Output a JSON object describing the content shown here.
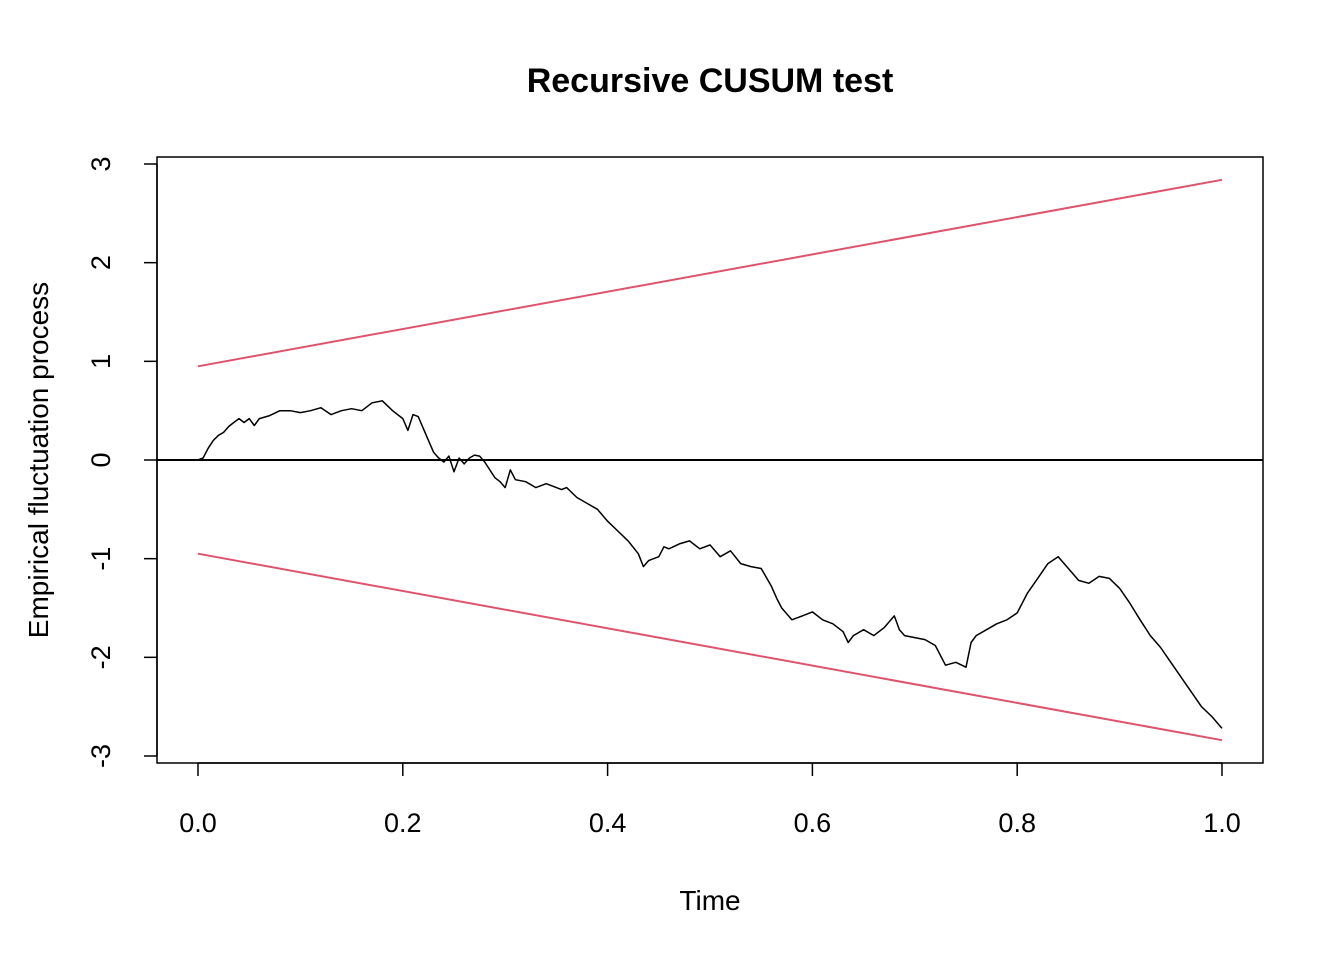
{
  "chart_data": {
    "type": "line",
    "title": "Recursive CUSUM test",
    "xlabel": "Time",
    "ylabel": "Empirical fluctuation process",
    "xlim": [
      0.0,
      1.0
    ],
    "ylim": [
      -3,
      3
    ],
    "x_ticks": [
      "0.0",
      "0.2",
      "0.4",
      "0.6",
      "0.8",
      "1.0"
    ],
    "y_ticks": [
      "-3",
      "-2",
      "-1",
      "0",
      "1",
      "2",
      "3"
    ],
    "grid": false,
    "reference_line": {
      "y": 0,
      "color": "#000000"
    },
    "boundaries": [
      {
        "points": [
          [
            0.0,
            0.95
          ],
          [
            1.0,
            2.84
          ]
        ],
        "color": "#DF536B"
      },
      {
        "points": [
          [
            0.0,
            -0.95
          ],
          [
            1.0,
            -2.84
          ]
        ],
        "color": "#DF536B"
      }
    ],
    "series": [
      {
        "color": "#000000",
        "points": [
          [
            0.0,
            0.0
          ],
          [
            0.005,
            0.02
          ],
          [
            0.01,
            0.12
          ],
          [
            0.015,
            0.2
          ],
          [
            0.02,
            0.25
          ],
          [
            0.025,
            0.28
          ],
          [
            0.03,
            0.34
          ],
          [
            0.035,
            0.38
          ],
          [
            0.04,
            0.42
          ],
          [
            0.045,
            0.38
          ],
          [
            0.05,
            0.42
          ],
          [
            0.055,
            0.35
          ],
          [
            0.06,
            0.42
          ],
          [
            0.07,
            0.45
          ],
          [
            0.08,
            0.5
          ],
          [
            0.09,
            0.5
          ],
          [
            0.1,
            0.48
          ],
          [
            0.11,
            0.5
          ],
          [
            0.12,
            0.53
          ],
          [
            0.13,
            0.46
          ],
          [
            0.14,
            0.5
          ],
          [
            0.15,
            0.52
          ],
          [
            0.16,
            0.5
          ],
          [
            0.17,
            0.58
          ],
          [
            0.18,
            0.6
          ],
          [
            0.185,
            0.55
          ],
          [
            0.19,
            0.5
          ],
          [
            0.2,
            0.42
          ],
          [
            0.205,
            0.3
          ],
          [
            0.21,
            0.46
          ],
          [
            0.215,
            0.44
          ],
          [
            0.22,
            0.32
          ],
          [
            0.225,
            0.2
          ],
          [
            0.23,
            0.08
          ],
          [
            0.235,
            0.02
          ],
          [
            0.24,
            -0.02
          ],
          [
            0.245,
            0.04
          ],
          [
            0.25,
            -0.12
          ],
          [
            0.255,
            0.02
          ],
          [
            0.26,
            -0.04
          ],
          [
            0.265,
            0.02
          ],
          [
            0.27,
            0.05
          ],
          [
            0.275,
            0.04
          ],
          [
            0.28,
            -0.02
          ],
          [
            0.285,
            -0.1
          ],
          [
            0.29,
            -0.18
          ],
          [
            0.295,
            -0.22
          ],
          [
            0.3,
            -0.28
          ],
          [
            0.305,
            -0.1
          ],
          [
            0.31,
            -0.2
          ],
          [
            0.32,
            -0.22
          ],
          [
            0.33,
            -0.28
          ],
          [
            0.34,
            -0.24
          ],
          [
            0.35,
            -0.28
          ],
          [
            0.355,
            -0.3
          ],
          [
            0.36,
            -0.28
          ],
          [
            0.37,
            -0.38
          ],
          [
            0.38,
            -0.44
          ],
          [
            0.39,
            -0.5
          ],
          [
            0.4,
            -0.62
          ],
          [
            0.41,
            -0.72
          ],
          [
            0.42,
            -0.82
          ],
          [
            0.43,
            -0.95
          ],
          [
            0.435,
            -1.08
          ],
          [
            0.44,
            -1.02
          ],
          [
            0.45,
            -0.98
          ],
          [
            0.455,
            -0.88
          ],
          [
            0.46,
            -0.9
          ],
          [
            0.47,
            -0.85
          ],
          [
            0.48,
            -0.82
          ],
          [
            0.49,
            -0.9
          ],
          [
            0.5,
            -0.86
          ],
          [
            0.51,
            -0.98
          ],
          [
            0.52,
            -0.92
          ],
          [
            0.53,
            -1.05
          ],
          [
            0.54,
            -1.08
          ],
          [
            0.55,
            -1.1
          ],
          [
            0.56,
            -1.28
          ],
          [
            0.565,
            -1.4
          ],
          [
            0.57,
            -1.5
          ],
          [
            0.58,
            -1.62
          ],
          [
            0.59,
            -1.58
          ],
          [
            0.6,
            -1.54
          ],
          [
            0.61,
            -1.62
          ],
          [
            0.62,
            -1.66
          ],
          [
            0.63,
            -1.74
          ],
          [
            0.635,
            -1.85
          ],
          [
            0.64,
            -1.78
          ],
          [
            0.65,
            -1.72
          ],
          [
            0.66,
            -1.78
          ],
          [
            0.67,
            -1.7
          ],
          [
            0.68,
            -1.58
          ],
          [
            0.685,
            -1.72
          ],
          [
            0.69,
            -1.78
          ],
          [
            0.7,
            -1.8
          ],
          [
            0.71,
            -1.82
          ],
          [
            0.72,
            -1.88
          ],
          [
            0.73,
            -2.08
          ],
          [
            0.74,
            -2.05
          ],
          [
            0.75,
            -2.1
          ],
          [
            0.755,
            -1.85
          ],
          [
            0.76,
            -1.78
          ],
          [
            0.77,
            -1.72
          ],
          [
            0.78,
            -1.66
          ],
          [
            0.79,
            -1.62
          ],
          [
            0.8,
            -1.55
          ],
          [
            0.81,
            -1.35
          ],
          [
            0.82,
            -1.2
          ],
          [
            0.83,
            -1.05
          ],
          [
            0.84,
            -0.98
          ],
          [
            0.85,
            -1.1
          ],
          [
            0.86,
            -1.22
          ],
          [
            0.87,
            -1.25
          ],
          [
            0.88,
            -1.18
          ],
          [
            0.89,
            -1.2
          ],
          [
            0.9,
            -1.3
          ],
          [
            0.91,
            -1.45
          ],
          [
            0.92,
            -1.62
          ],
          [
            0.93,
            -1.78
          ],
          [
            0.94,
            -1.9
          ],
          [
            0.95,
            -2.05
          ],
          [
            0.96,
            -2.2
          ],
          [
            0.97,
            -2.35
          ],
          [
            0.98,
            -2.5
          ],
          [
            0.99,
            -2.6
          ],
          [
            1.0,
            -2.72
          ]
        ]
      }
    ]
  }
}
